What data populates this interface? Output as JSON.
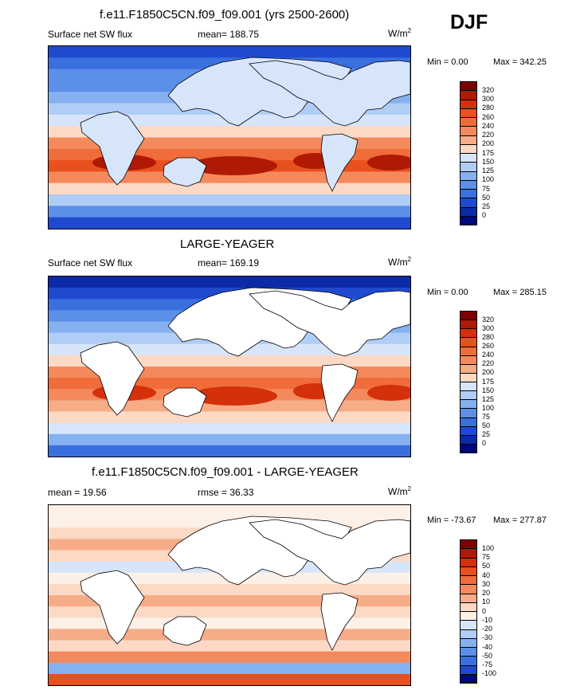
{
  "season": "DJF",
  "panels": [
    {
      "title": "f.e11.F1850C5CN.f09_f09.001 (yrs 2500-2600)",
      "left": "Surface net SW flux",
      "center": "mean= 188.75",
      "units": "W/m",
      "units_sup": "2",
      "minmax_min": "Min =   0.00",
      "minmax_max": "Max = 342.25",
      "kind": "model",
      "colorbar": {
        "labels": [
          "320",
          "300",
          "280",
          "260",
          "240",
          "220",
          "200",
          "175",
          "150",
          "125",
          "100",
          "75",
          "50",
          "25",
          "0"
        ],
        "colors": [
          "#7f0000",
          "#b01a04",
          "#d4300b",
          "#e8501d",
          "#f06c3b",
          "#f48a5c",
          "#f7ac88",
          "#fbd9c4",
          "#d7e5fa",
          "#b0cdf6",
          "#86b1f0",
          "#5b8fe8",
          "#3a6fe0",
          "#1f4ad0",
          "#0a2aa8",
          "#000880"
        ]
      }
    },
    {
      "title": "LARGE-YEAGER",
      "left": "Surface net SW flux",
      "center": "mean= 169.19",
      "units": "W/m",
      "units_sup": "2",
      "minmax_min": "Min =   0.00",
      "minmax_max": "Max = 285.15",
      "kind": "obs",
      "colorbar": {
        "labels": [
          "320",
          "300",
          "280",
          "260",
          "240",
          "220",
          "200",
          "175",
          "150",
          "125",
          "100",
          "75",
          "50",
          "25",
          "0"
        ],
        "colors": [
          "#7f0000",
          "#b01a04",
          "#d4300b",
          "#e8501d",
          "#f06c3b",
          "#f48a5c",
          "#f7ac88",
          "#fbd9c4",
          "#d7e5fa",
          "#b0cdf6",
          "#86b1f0",
          "#5b8fe8",
          "#3a6fe0",
          "#1f4ad0",
          "#0a2aa8",
          "#000880"
        ]
      }
    },
    {
      "title": "f.e11.F1850C5CN.f09_f09.001 - LARGE-YEAGER",
      "left": "mean =  19.56",
      "center": "rmse =  36.33",
      "units": "W/m",
      "units_sup": "2",
      "minmax_min": "Min = -73.67",
      "minmax_max": "Max = 277.87",
      "kind": "diff",
      "colorbar": {
        "labels": [
          "100",
          "75",
          "50",
          "40",
          "30",
          "20",
          "10",
          "0",
          "-10",
          "-20",
          "-30",
          "-40",
          "-50",
          "-75",
          "-100"
        ],
        "colors": [
          "#7f0000",
          "#b01a04",
          "#d4300b",
          "#e8501d",
          "#f06c3b",
          "#f48a5c",
          "#f7ac88",
          "#fbd9c4",
          "#fdf0e6",
          "#d7e5fa",
          "#b0cdf6",
          "#86b1f0",
          "#5b8fe8",
          "#3a6fe0",
          "#1f4ad0",
          "#000880"
        ]
      }
    }
  ]
}
